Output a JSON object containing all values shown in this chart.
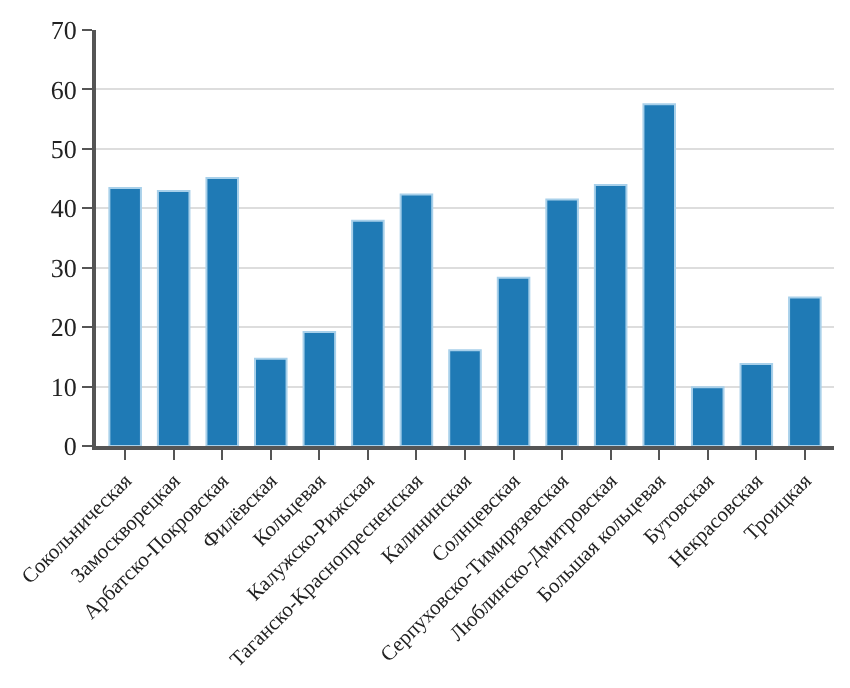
{
  "chart_data": {
    "type": "bar",
    "categories": [
      "Сокольническая",
      "Замоскворецкая",
      "Арбатско-Покровская",
      "Филёвская",
      "Кольцевая",
      "Калужско-Рижская",
      "Таганско-Краснопресненская",
      "Калининская",
      "Солнцевская",
      "Серпуховско-Тимирязевская",
      "Люблинско-Дмитровская",
      "Большая кольцевая",
      "Бутовская",
      "Некрасовская",
      "Троицкая"
    ],
    "values": [
      43.4,
      42.9,
      45.1,
      14.7,
      19.2,
      37.9,
      42.3,
      16.1,
      28.3,
      41.5,
      43.9,
      57.5,
      9.9,
      13.8,
      25.0
    ],
    "color": "#1f7ab5",
    "ylim": [
      0,
      70
    ],
    "yticks": [
      0,
      10,
      20,
      30,
      40,
      50,
      60,
      70
    ],
    "grid": "y"
  }
}
